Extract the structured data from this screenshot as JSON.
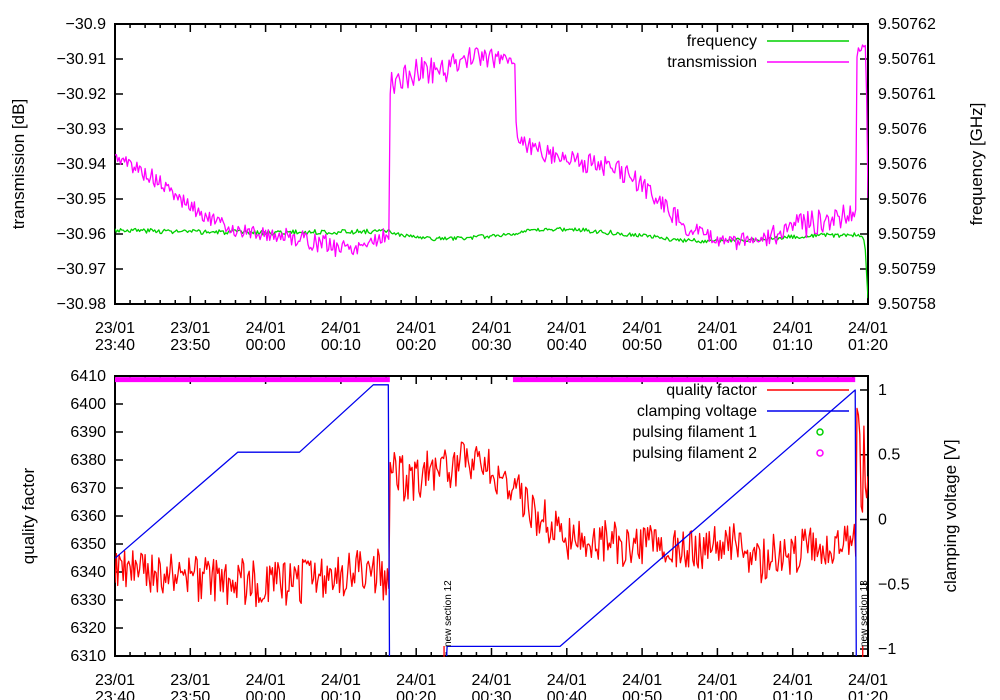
{
  "colors": {
    "background": "#ffffff",
    "axis": "#000000",
    "frequency": "#00d000",
    "transmission": "#ff00ff",
    "quality_factor": "#ff0000",
    "clamping_voltage": "#0000ee"
  },
  "chart_data": [
    {
      "type": "line",
      "x": {
        "min": 0,
        "max": 100,
        "major_step": 10,
        "minor_step": 2,
        "tick_labels": [
          [
            "23/01",
            "23:40"
          ],
          [
            "23/01",
            "23:50"
          ],
          [
            "24/01",
            "00:00"
          ],
          [
            "24/01",
            "00:10"
          ],
          [
            "24/01",
            "00:20"
          ],
          [
            "24/01",
            "00:30"
          ],
          [
            "24/01",
            "00:40"
          ],
          [
            "24/01",
            "00:50"
          ],
          [
            "24/01",
            "01:00"
          ],
          [
            "24/01",
            "01:10"
          ],
          [
            "24/01",
            "01:20"
          ]
        ]
      },
      "y": {
        "label": "transmission [dB]",
        "min": -30.98,
        "max": -30.9,
        "ticks": [
          -30.9,
          -30.91,
          -30.92,
          -30.93,
          -30.94,
          -30.95,
          -30.96,
          -30.97,
          -30.98
        ],
        "tick_labels": [
          "−30.9",
          "−30.91",
          "−30.92",
          "−30.93",
          "−30.94",
          "−30.95",
          "−30.96",
          "−30.97",
          "−30.98"
        ]
      },
      "y2": {
        "label": "frequency [GHz]",
        "min": 9.50758,
        "max": 9.50762,
        "ticks": [
          9.50762,
          9.507615,
          9.50761,
          9.507605,
          9.5076,
          9.507595,
          9.50759,
          9.507585,
          9.50758
        ],
        "tick_labels": [
          "9.50762",
          "9.50761",
          "9.50761",
          "9.5076",
          "9.5076",
          "9.5076",
          "9.50759",
          "9.50759",
          "9.50758"
        ]
      },
      "legend": [
        {
          "label": "frequency",
          "color": "#00d000",
          "type": "line"
        },
        {
          "label": "transmission",
          "color": "#ff00ff",
          "type": "line"
        }
      ],
      "series": [
        {
          "name": "frequency",
          "axis": "y2",
          "color": "#00d000",
          "seed": 3,
          "breakpoints": [
            [
              0,
              9.5075906,
              3.5e-07
            ],
            [
              10,
              9.5075903,
              3.5e-07
            ],
            [
              20,
              9.5075902,
              3.5e-07
            ],
            [
              30,
              9.5075903,
              3.5e-07
            ],
            [
              36.4,
              9.5075904,
              3e-07
            ],
            [
              38,
              9.5075898,
              3e-07
            ],
            [
              42,
              9.5075893,
              3e-07
            ],
            [
              46,
              9.5075894,
              3e-07
            ],
            [
              50,
              9.5075897,
              3e-07
            ],
            [
              55,
              9.5075904,
              3e-07
            ],
            [
              58,
              9.5075907,
              3e-07
            ],
            [
              62,
              9.5075906,
              3.5e-07
            ],
            [
              66,
              9.5075902,
              3.5e-07
            ],
            [
              70,
              9.5075898,
              3e-07
            ],
            [
              74,
              9.5075892,
              3e-07
            ],
            [
              78,
              9.507589,
              3e-07
            ],
            [
              82,
              9.5075891,
              3e-07
            ],
            [
              86,
              9.5075892,
              3e-07
            ],
            [
              90,
              9.5075896,
              3e-07
            ],
            [
              94,
              9.5075898,
              3.5e-07
            ],
            [
              98,
              9.5075899,
              3e-07
            ],
            [
              99.3,
              9.5075897,
              2e-07
            ],
            [
              99.6,
              9.5075885,
              1e-07
            ],
            [
              100,
              9.5075808,
              5e-08
            ]
          ]
        },
        {
          "name": "transmission",
          "axis": "y",
          "color": "#ff00ff",
          "seed": 5,
          "breakpoints": [
            [
              0,
              -30.938,
              0.0015
            ],
            [
              2,
              -30.94,
              0.002
            ],
            [
              5,
              -30.944,
              0.0025
            ],
            [
              8,
              -30.949,
              0.002
            ],
            [
              12,
              -30.955,
              0.002
            ],
            [
              16,
              -30.959,
              0.002
            ],
            [
              20,
              -30.96,
              0.002
            ],
            [
              24,
              -30.961,
              0.0025
            ],
            [
              28,
              -30.963,
              0.003
            ],
            [
              31,
              -30.964,
              0.003
            ],
            [
              34,
              -30.962,
              0.0025
            ],
            [
              36.4,
              -30.96,
              0.002
            ],
            [
              36.55,
              -30.917,
              0.003
            ],
            [
              38,
              -30.916,
              0.004
            ],
            [
              41,
              -30.913,
              0.004
            ],
            [
              44,
              -30.913,
              0.0035
            ],
            [
              46,
              -30.91,
              0.003
            ],
            [
              48,
              -30.909,
              0.0025
            ],
            [
              50,
              -30.91,
              0.003
            ],
            [
              52.5,
              -30.909,
              0.003
            ],
            [
              53.1,
              -30.911,
              0.002
            ],
            [
              53.3,
              -30.932,
              0.002
            ],
            [
              55,
              -30.935,
              0.003
            ],
            [
              58,
              -30.937,
              0.003
            ],
            [
              61,
              -30.939,
              0.003
            ],
            [
              64,
              -30.94,
              0.003
            ],
            [
              67,
              -30.942,
              0.003
            ],
            [
              70,
              -30.946,
              0.003
            ],
            [
              73,
              -30.952,
              0.003
            ],
            [
              76,
              -30.958,
              0.0025
            ],
            [
              79,
              -30.961,
              0.002
            ],
            [
              82,
              -30.962,
              0.0025
            ],
            [
              85,
              -30.962,
              0.0025
            ],
            [
              88,
              -30.96,
              0.003
            ],
            [
              91,
              -30.958,
              0.004
            ],
            [
              94,
              -30.956,
              0.004
            ],
            [
              97,
              -30.954,
              0.004
            ],
            [
              98.4,
              -30.953,
              0.003
            ],
            [
              98.55,
              -30.908,
              0.0015
            ],
            [
              99.6,
              -30.906,
              0.0015
            ],
            [
              99.75,
              -30.91,
              0.001
            ],
            [
              100,
              -30.948,
              0.002
            ]
          ]
        }
      ]
    },
    {
      "type": "line",
      "x": {
        "min": 0,
        "max": 100,
        "major_step": 10,
        "minor_step": 2,
        "tick_labels": [
          [
            "23/01",
            "23:40"
          ],
          [
            "23/01",
            "23:50"
          ],
          [
            "24/01",
            "00:00"
          ],
          [
            "24/01",
            "00:10"
          ],
          [
            "24/01",
            "00:20"
          ],
          [
            "24/01",
            "00:30"
          ],
          [
            "24/01",
            "00:40"
          ],
          [
            "24/01",
            "00:50"
          ],
          [
            "24/01",
            "01:00"
          ],
          [
            "24/01",
            "01:10"
          ],
          [
            "24/01",
            "01:20"
          ]
        ]
      },
      "y": {
        "label": "quality factor",
        "min": 6310,
        "max": 6410,
        "ticks": [
          6410,
          6400,
          6390,
          6380,
          6370,
          6360,
          6350,
          6340,
          6330,
          6320,
          6310
        ],
        "tick_labels": [
          "6410",
          "6400",
          "6390",
          "6380",
          "6370",
          "6360",
          "6350",
          "6340",
          "6330",
          "6320",
          "6310"
        ]
      },
      "y2": {
        "label": "clamping voltage [V]",
        "min": -1.054,
        "max": 1.108,
        "ticks": [
          1,
          0.5,
          0,
          -0.5,
          -1
        ],
        "tick_labels": [
          "1",
          "0.5",
          "0",
          "−0.5",
          "−1"
        ]
      },
      "legend": [
        {
          "label": "quality factor",
          "color": "#ff0000",
          "type": "line"
        },
        {
          "label": "clamping voltage",
          "color": "#0000ee",
          "type": "line"
        },
        {
          "label": "pulsing filament 1",
          "color": "#00d000",
          "type": "points"
        },
        {
          "label": "pulsing filament 2",
          "color": "#ff00ff",
          "type": "points"
        }
      ],
      "series": [
        {
          "name": "quality factor",
          "axis": "y",
          "color": "#ff0000",
          "seed": 9,
          "breakpoints": [
            [
              0,
              6341,
              8
            ],
            [
              5,
              6340,
              8
            ],
            [
              10,
              6338,
              8
            ],
            [
              14,
              6336,
              9
            ],
            [
              18,
              6337,
              9
            ],
            [
              22,
              6335,
              9
            ],
            [
              26,
              6338,
              8
            ],
            [
              30,
              6339,
              8
            ],
            [
              33,
              6341,
              8
            ],
            [
              36.4,
              6338,
              10
            ],
            [
              36.55,
              6376,
              9
            ],
            [
              39,
              6372,
              8
            ],
            [
              42,
              6376,
              8
            ],
            [
              45,
              6378,
              8
            ],
            [
              47,
              6380,
              7
            ],
            [
              49,
              6379,
              7
            ],
            [
              51,
              6374,
              8
            ],
            [
              54,
              6366,
              8
            ],
            [
              57,
              6358,
              8
            ],
            [
              60,
              6352,
              8
            ],
            [
              63,
              6350,
              7
            ],
            [
              66,
              6351,
              8
            ],
            [
              69,
              6348,
              8
            ],
            [
              72,
              6349,
              8
            ],
            [
              75,
              6347,
              8
            ],
            [
              78,
              6349,
              8
            ],
            [
              81,
              6351,
              7
            ],
            [
              84,
              6347,
              9
            ],
            [
              85,
              6340,
              12
            ],
            [
              87,
              6346,
              8
            ],
            [
              90,
              6347,
              8
            ],
            [
              93,
              6348,
              8
            ],
            [
              96,
              6350,
              8
            ],
            [
              98.4,
              6352,
              7
            ],
            [
              98.55,
              6398,
              4
            ],
            [
              98.9,
              6385,
              8
            ],
            [
              99.2,
              6360,
              12
            ],
            [
              99.5,
              6388,
              8
            ],
            [
              99.8,
              6362,
              8
            ],
            [
              100,
              6370,
              5
            ]
          ]
        },
        {
          "name": "clamping voltage",
          "axis": "y2",
          "color": "#0000ee",
          "seed": 1,
          "breakpoints": [
            [
              0,
              -0.3,
              0
            ],
            [
              16.3,
              0.52,
              0
            ],
            [
              24.5,
              0.52,
              0
            ],
            [
              34.3,
              1.04,
              0
            ],
            [
              36.3,
              1.04,
              0
            ],
            [
              36.45,
              -1.12,
              0
            ],
            [
              44,
              -1.12,
              0
            ],
            [
              44.1,
              -0.98,
              0
            ],
            [
              59.1,
              -0.98,
              0
            ],
            [
              98.3,
              1,
              0
            ],
            [
              98.45,
              -1.12,
              0
            ],
            [
              100,
              -1.12,
              0
            ]
          ]
        }
      ],
      "marker_bars": [
        {
          "name": "pulsing filament 1",
          "color": "#00d000",
          "axis": "y2",
          "value": 1.08,
          "intervals": []
        },
        {
          "name": "pulsing filament 2",
          "color": "#ff00ff",
          "axis": "y2",
          "value": 1.08,
          "intervals": [
            [
              0,
              36.5
            ],
            [
              52.85,
              98.3
            ]
          ]
        }
      ],
      "section_marks": {
        "color": "#ff0000",
        "ts": [
          43.7,
          99.3
        ]
      },
      "annotations": [
        {
          "text": "new section 12",
          "t": 44.6
        },
        {
          "text": "new section 13",
          "t": 99.9
        }
      ]
    }
  ]
}
